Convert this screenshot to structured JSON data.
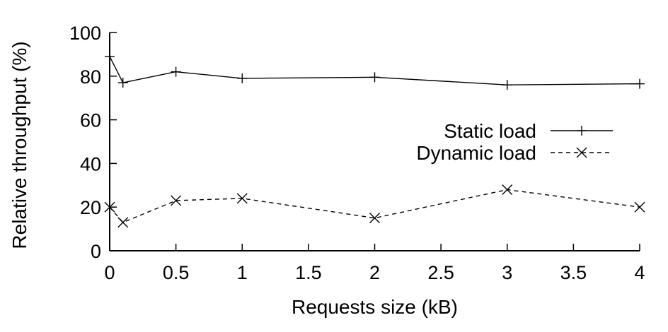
{
  "chart_data": {
    "type": "line",
    "title": "",
    "xlabel": "Requests size (kB)",
    "ylabel": "Relative throughput (%)",
    "xlim": [
      0,
      4
    ],
    "ylim": [
      0,
      100
    ],
    "xticks": [
      0,
      0.5,
      1,
      1.5,
      2,
      2.5,
      3,
      3.5,
      4
    ],
    "xtick_labels": [
      "0",
      "0.5",
      "1",
      "1.5",
      "2",
      "2.5",
      "3",
      "3.5",
      "4"
    ],
    "yticks": [
      0,
      20,
      40,
      60,
      80,
      100
    ],
    "ytick_labels": [
      "0",
      "20",
      "40",
      "60",
      "80",
      "100"
    ],
    "grid": false,
    "legend_position": "right",
    "series": [
      {
        "name": "Static load",
        "marker": "plus",
        "line_style": "solid",
        "color": "#000000",
        "x": [
          0,
          0.1,
          0.5,
          1,
          2,
          3,
          4
        ],
        "y": [
          89,
          77,
          82,
          79,
          79.5,
          76,
          76.5
        ]
      },
      {
        "name": "Dynamic load",
        "marker": "cross",
        "line_style": "dashed",
        "color": "#000000",
        "x": [
          0,
          0.1,
          0.5,
          1,
          2,
          3,
          4
        ],
        "y": [
          20,
          13,
          23,
          24,
          15,
          28,
          20
        ]
      }
    ]
  }
}
